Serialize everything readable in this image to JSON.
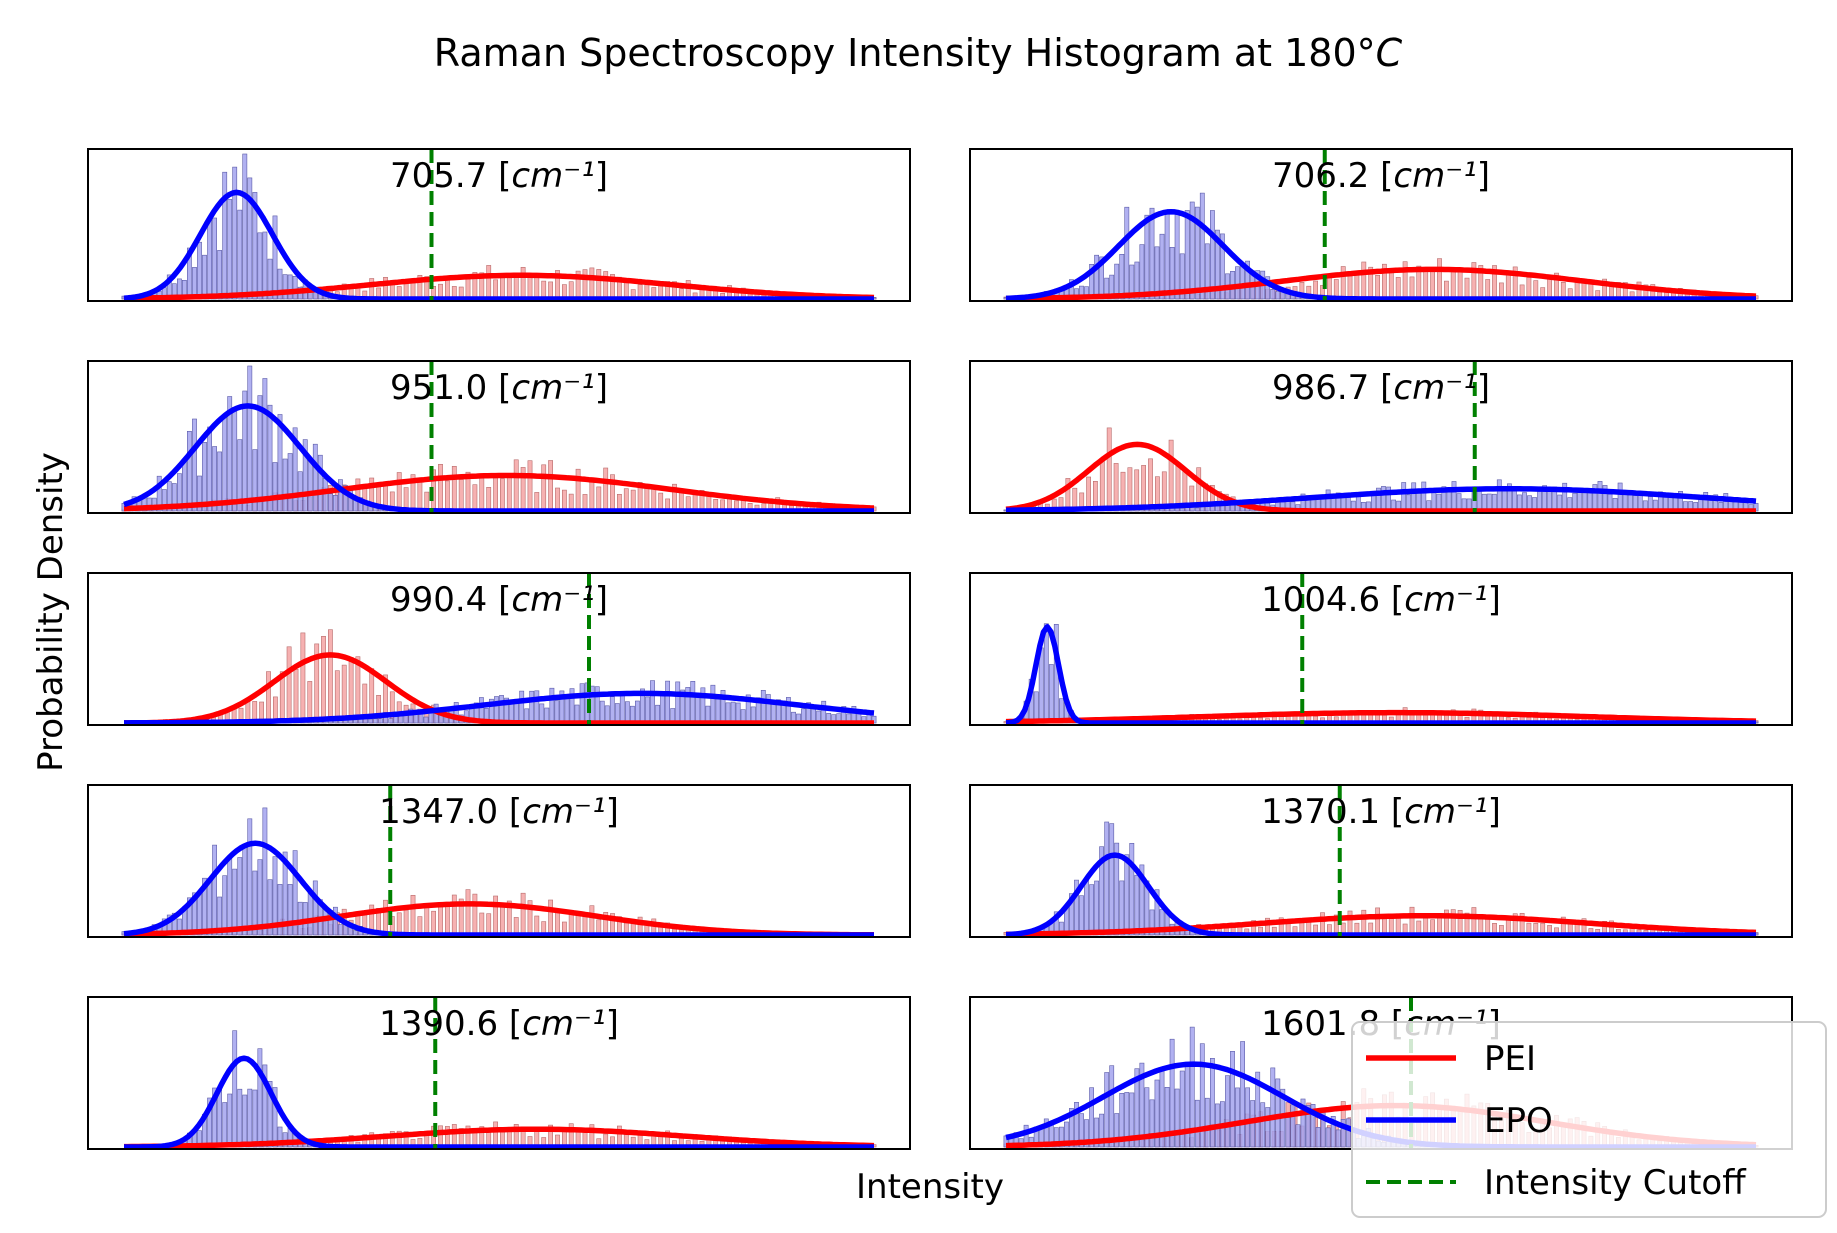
{
  "title": "Raman Spectroscopy Intensity Histogram at 180°C",
  "title_parts": {
    "main": "Raman Spectroscopy Intensity Histogram at 180°",
    "unit": "C"
  },
  "xlabel": "Intensity",
  "ylabel": "Probability Density",
  "legend": {
    "placement": "bottom-right",
    "items": [
      {
        "key": "pei",
        "label": "PEI",
        "color": "#ff0000",
        "style": "solid"
      },
      {
        "key": "epo",
        "label": "EPO",
        "color": "#0000ff",
        "style": "solid"
      },
      {
        "key": "cutoff",
        "label": "Intensity Cutoff",
        "color": "#008000",
        "style": "dashed"
      }
    ]
  },
  "colors": {
    "pei_line": "#ff0000",
    "epo_line": "#0000ff",
    "cutoff": "#008000",
    "pei_bar": "#f4a3a3",
    "epo_bar": "#a3a3ee",
    "overlap_bar": "#7f7f9a"
  },
  "chart_data": [
    {
      "type": "histogram",
      "wavenumber": "705.7",
      "unit": "cm⁻¹",
      "axes_visible": false,
      "cutoff": 0.41,
      "epo": {
        "mean": 0.15,
        "sd": 0.048,
        "peak": 0.72
      },
      "pei": {
        "mean": 0.53,
        "sd": 0.2,
        "peak": 0.16
      }
    },
    {
      "type": "histogram",
      "wavenumber": "706.2",
      "unit": "cm⁻¹",
      "axes_visible": false,
      "cutoff": 0.425,
      "epo": {
        "mean": 0.22,
        "sd": 0.07,
        "peak": 0.59
      },
      "pei": {
        "mean": 0.57,
        "sd": 0.2,
        "peak": 0.2
      }
    },
    {
      "type": "histogram",
      "wavenumber": "951.0",
      "unit": "cm⁻¹",
      "axes_visible": false,
      "cutoff": 0.41,
      "epo": {
        "mean": 0.165,
        "sd": 0.07,
        "peak": 0.71
      },
      "pei": {
        "mean": 0.51,
        "sd": 0.22,
        "peak": 0.24
      }
    },
    {
      "type": "histogram",
      "wavenumber": "986.7",
      "unit": "cm⁻¹",
      "axes_visible": false,
      "cutoff": 0.625,
      "pei": {
        "mean": 0.175,
        "sd": 0.065,
        "peak": 0.45
      },
      "epo": {
        "mean": 0.67,
        "sd": 0.26,
        "peak": 0.15
      }
    },
    {
      "type": "histogram",
      "wavenumber": "990.4",
      "unit": "cm⁻¹",
      "axes_visible": false,
      "cutoff": 0.62,
      "pei": {
        "mean": 0.275,
        "sd": 0.075,
        "peak": 0.46
      },
      "epo": {
        "mean": 0.69,
        "sd": 0.21,
        "peak": 0.2
      }
    },
    {
      "type": "histogram",
      "wavenumber": "1004.6",
      "unit": "cm⁻¹",
      "axes_visible": false,
      "cutoff": 0.395,
      "epo": {
        "mean": 0.055,
        "sd": 0.015,
        "peak": 0.65
      },
      "pei": {
        "mean": 0.52,
        "sd": 0.26,
        "peak": 0.07
      }
    },
    {
      "type": "histogram",
      "wavenumber": "1347.0",
      "unit": "cm⁻¹",
      "axes_visible": false,
      "cutoff": 0.355,
      "epo": {
        "mean": 0.175,
        "sd": 0.06,
        "peak": 0.62
      },
      "pei": {
        "mean": 0.46,
        "sd": 0.17,
        "peak": 0.21
      }
    },
    {
      "type": "histogram",
      "wavenumber": "1370.1",
      "unit": "cm⁻¹",
      "axes_visible": false,
      "cutoff": 0.445,
      "epo": {
        "mean": 0.145,
        "sd": 0.045,
        "peak": 0.54
      },
      "pei": {
        "mean": 0.56,
        "sd": 0.22,
        "peak": 0.13
      }
    },
    {
      "type": "histogram",
      "wavenumber": "1390.6",
      "unit": "cm⁻¹",
      "axes_visible": false,
      "cutoff": 0.415,
      "epo": {
        "mean": 0.16,
        "sd": 0.036,
        "peak": 0.6
      },
      "pei": {
        "mean": 0.55,
        "sd": 0.2,
        "peak": 0.12
      }
    },
    {
      "type": "histogram",
      "wavenumber": "1601.8",
      "unit": "cm⁻¹",
      "axes_visible": false,
      "cutoff": 0.54,
      "epo": {
        "mean": 0.25,
        "sd": 0.12,
        "peak": 0.56
      },
      "pei": {
        "mean": 0.52,
        "sd": 0.2,
        "peak": 0.28
      }
    }
  ]
}
